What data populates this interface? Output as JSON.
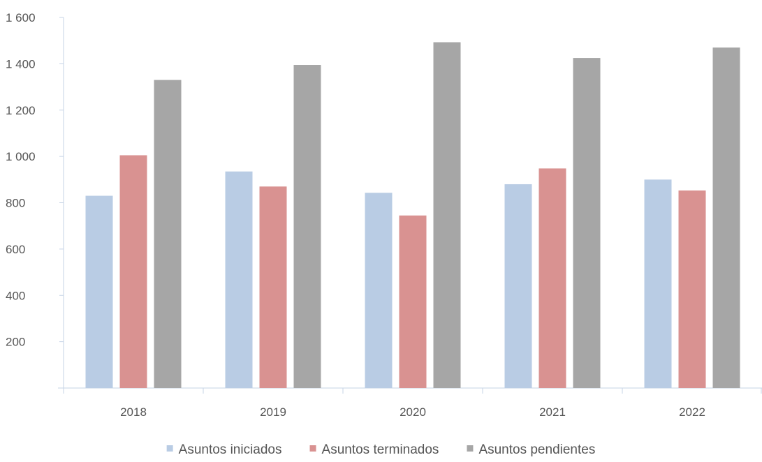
{
  "chart_data": {
    "type": "bar",
    "title": "",
    "xlabel": "",
    "ylabel": "",
    "categories": [
      "2018",
      "2019",
      "2020",
      "2021",
      "2022"
    ],
    "series": [
      {
        "name": "Asuntos iniciados",
        "color": "#b9cce4",
        "values": [
          830,
          935,
          843,
          880,
          900
        ]
      },
      {
        "name": "Asuntos terminados",
        "color": "#d99291",
        "values": [
          1005,
          870,
          745,
          948,
          853
        ]
      },
      {
        "name": "Asuntos pendientes",
        "color": "#a6a6a6",
        "values": [
          1330,
          1395,
          1493,
          1425,
          1470
        ]
      }
    ],
    "ylim": [
      0,
      1600
    ],
    "yticks": [
      200,
      400,
      600,
      800,
      1000,
      1200,
      1400,
      1600
    ],
    "ytick_labels": [
      "200",
      "400",
      "600",
      "800",
      "1 000",
      "1 200",
      "1 400",
      "1 600"
    ],
    "grid": false,
    "legend_position": "bottom-center"
  }
}
